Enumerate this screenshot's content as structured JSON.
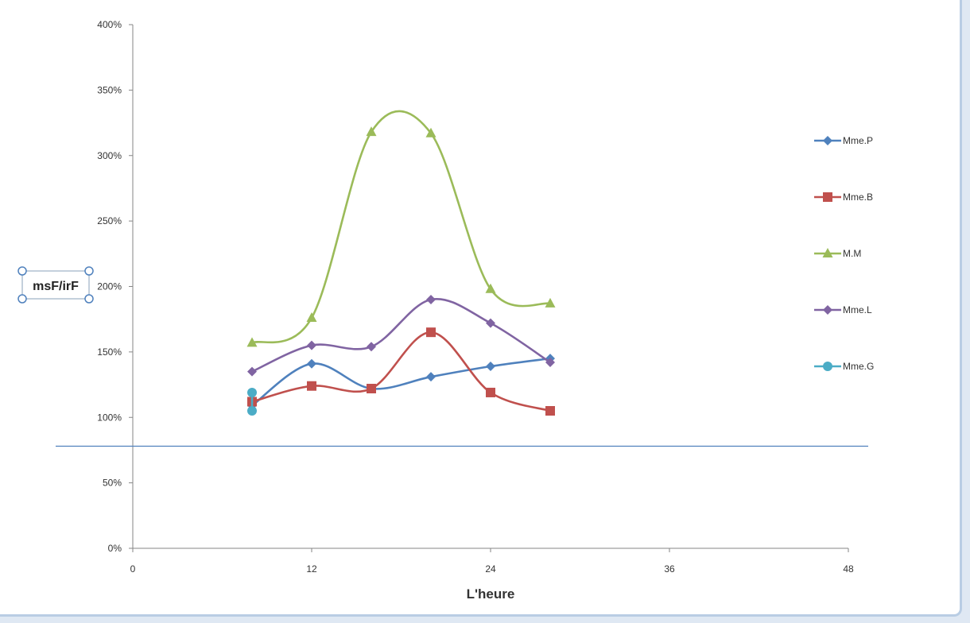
{
  "chart_data": {
    "type": "line",
    "title": "",
    "xlabel": "L'heure",
    "ylabel": "msF/irF",
    "xlim": [
      0,
      48
    ],
    "ylim": [
      0,
      4
    ],
    "xticks": [
      0,
      12,
      24,
      36,
      48
    ],
    "yticks": [
      0,
      0.5,
      1.0,
      1.5,
      2.0,
      2.5,
      3.0,
      3.5,
      4.0
    ],
    "xtick_labels": [
      "0",
      "12",
      "24",
      "36",
      "48"
    ],
    "ytick_labels": [
      "0%",
      "50%",
      "100%",
      "150%",
      "200%",
      "250%",
      "300%",
      "350%",
      "400%"
    ],
    "reference_line_y": 0.78,
    "smooth": true,
    "grid": false,
    "legend_position": "right",
    "series": [
      {
        "name": "Mme.P",
        "color": "#4f81bd",
        "marker": "diamond",
        "x": [
          8,
          12,
          16,
          20,
          24,
          28
        ],
        "y": [
          1.09,
          1.41,
          1.22,
          1.31,
          1.39,
          1.45
        ]
      },
      {
        "name": "Mme.B",
        "color": "#c0504d",
        "marker": "square",
        "x": [
          8,
          12,
          16,
          20,
          24,
          28
        ],
        "y": [
          1.12,
          1.24,
          1.22,
          1.65,
          1.19,
          1.05
        ]
      },
      {
        "name": "M.M",
        "color": "#9bbb59",
        "marker": "triangle",
        "x": [
          8,
          12,
          16,
          20,
          24,
          28
        ],
        "y": [
          1.57,
          1.76,
          3.18,
          3.17,
          1.98,
          1.87
        ]
      },
      {
        "name": "Mme.L",
        "color": "#8064a2",
        "marker": "diamond",
        "x": [
          8,
          12,
          16,
          20,
          24,
          28
        ],
        "y": [
          1.35,
          1.55,
          1.54,
          1.9,
          1.72,
          1.42
        ]
      },
      {
        "name": "Mme.G",
        "color": "#4bacc6",
        "marker": "circle",
        "x": [
          8,
          8
        ],
        "y": [
          1.19,
          1.05
        ]
      }
    ]
  }
}
